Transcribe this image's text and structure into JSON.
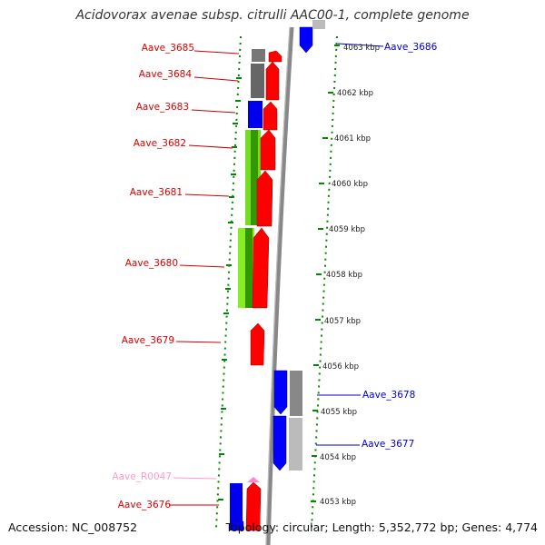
{
  "title": "Acidovorax avenae subsp. citrulli AAC00-1, complete genome",
  "accession": "Accession: NC_008752",
  "stats": "Topology: circular; Length: 5,352,772 bp; Genes: 4,774",
  "colors": {
    "forward_gene": "#ff0000",
    "reverse_gene": "#0000ff",
    "rna_gene": "#ff88cc",
    "cog_gray": "#777777",
    "cog_light_gray": "#bbbbbb",
    "cog_green": "#66cc00",
    "scale_dots": "#008800"
  },
  "scale_ticks": [
    "4063 kbp",
    "4062 kbp",
    "4061 kbp",
    "4060 kbp",
    "4059 kbp",
    "4058 kbp",
    "4057 kbp",
    "4056 kbp",
    "4055 kbp",
    "4054 kbp",
    "4053 kbp"
  ],
  "left_genes": [
    {
      "label": "Aave_3685",
      "color": "#dd0000"
    },
    {
      "label": "Aave_3684",
      "color": "#dd0000"
    },
    {
      "label": "Aave_3683",
      "color": "#dd0000"
    },
    {
      "label": "Aave_3682",
      "color": "#dd0000"
    },
    {
      "label": "Aave_3681",
      "color": "#dd0000"
    },
    {
      "label": "Aave_3680",
      "color": "#dd0000"
    },
    {
      "label": "Aave_3679",
      "color": "#dd0000"
    },
    {
      "label": "Aave_R0047",
      "color": "#ff99cc"
    },
    {
      "label": "Aave_3676",
      "color": "#dd0000"
    }
  ],
  "right_genes": [
    {
      "label": "Aave_3686",
      "color": "#0000cc"
    },
    {
      "label": "Aave_3678",
      "color": "#0000cc"
    },
    {
      "label": "Aave_3677",
      "color": "#0000cc"
    }
  ]
}
